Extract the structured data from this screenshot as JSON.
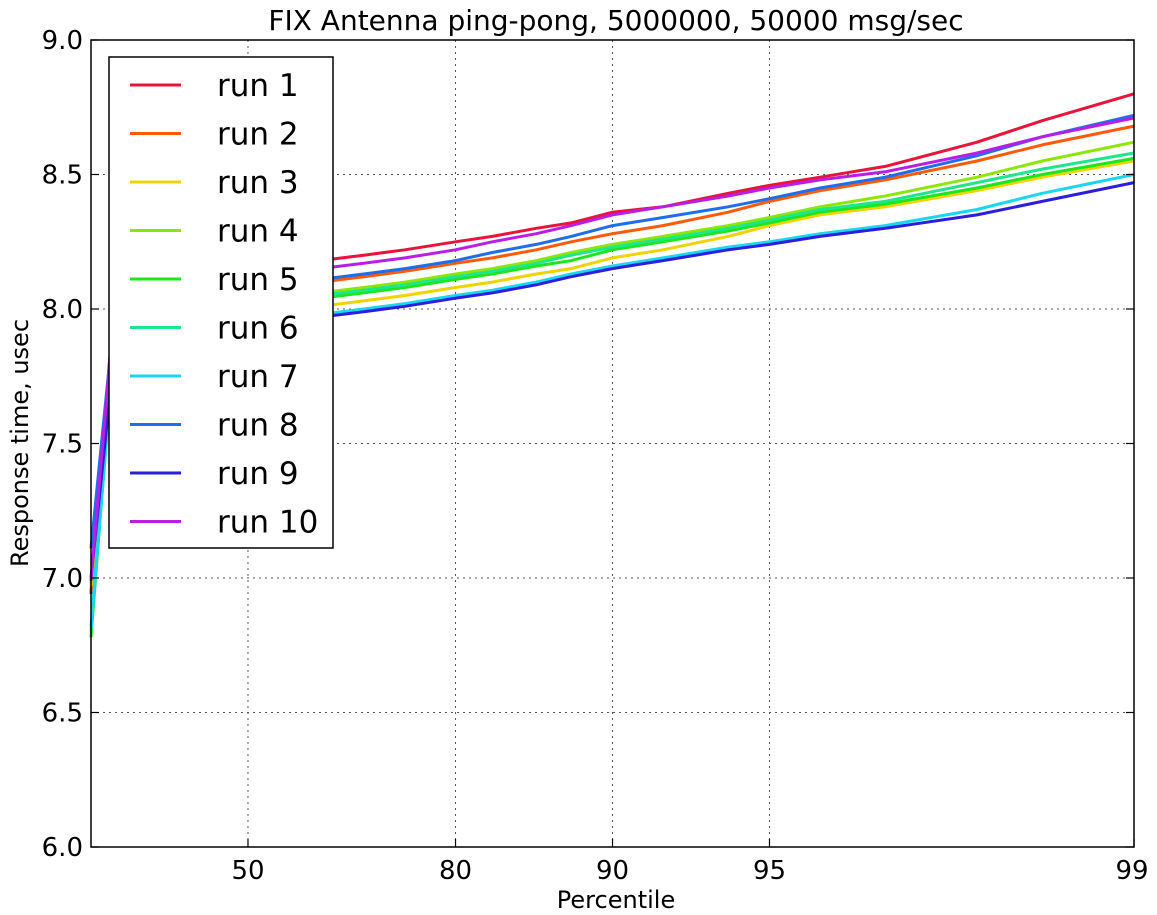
{
  "chart_data": {
    "type": "line",
    "title": "FIX Antenna ping-pong, 5000000, 50000 msg/sec",
    "xlabel": "Percentile",
    "ylabel": "Response time, usec",
    "x_scale": "percentile (reciprocal of 100 - p)",
    "xlim": [
      0,
      99
    ],
    "ylim": [
      6.0,
      9.0
    ],
    "yticks": [
      "6.0",
      "6.5",
      "7.0",
      "7.5",
      "8.0",
      "8.5",
      "9.0"
    ],
    "xticks": [
      {
        "value": 50,
        "label": "50"
      },
      {
        "value": 80,
        "label": "80"
      },
      {
        "value": 90,
        "label": "90"
      },
      {
        "value": 95,
        "label": "95"
      },
      {
        "value": 99,
        "label": "99"
      }
    ],
    "grid": true,
    "legend_position": "upper left",
    "x": [
      0,
      10,
      20,
      30,
      40,
      50,
      60,
      70,
      75,
      80,
      83,
      86,
      88,
      90,
      92,
      94,
      95,
      96,
      97,
      98,
      98.5,
      99
    ],
    "series": [
      {
        "name": "run 1",
        "color": "#e8143a",
        "values": [
          6.94,
          8.06,
          8.09,
          8.11,
          8.13,
          8.15,
          8.17,
          8.2,
          8.22,
          8.25,
          8.27,
          8.3,
          8.32,
          8.36,
          8.38,
          8.43,
          8.46,
          8.49,
          8.53,
          8.62,
          8.7,
          8.8
        ]
      },
      {
        "name": "run 2",
        "color": "#ff5a0a",
        "values": [
          6.95,
          8.0,
          8.02,
          8.04,
          8.06,
          8.07,
          8.09,
          8.12,
          8.14,
          8.17,
          8.19,
          8.22,
          8.25,
          8.28,
          8.31,
          8.36,
          8.4,
          8.44,
          8.48,
          8.55,
          8.61,
          8.68
        ]
      },
      {
        "name": "run 3",
        "color": "#f0d400",
        "values": [
          6.97,
          7.9,
          7.92,
          7.94,
          7.96,
          7.98,
          8.0,
          8.03,
          8.05,
          8.08,
          8.1,
          8.13,
          8.15,
          8.19,
          8.22,
          8.27,
          8.31,
          8.35,
          8.38,
          8.44,
          8.49,
          8.55
        ]
      },
      {
        "name": "run 4",
        "color": "#8ce60a",
        "values": [
          6.98,
          7.96,
          7.98,
          8.0,
          8.02,
          8.03,
          8.05,
          8.08,
          8.1,
          8.13,
          8.15,
          8.18,
          8.21,
          8.24,
          8.27,
          8.31,
          8.34,
          8.38,
          8.42,
          8.49,
          8.55,
          8.62
        ]
      },
      {
        "name": "run 5",
        "color": "#1ee61e",
        "values": [
          6.78,
          7.93,
          7.96,
          7.98,
          8.0,
          8.01,
          8.03,
          8.06,
          8.08,
          8.11,
          8.13,
          8.16,
          8.18,
          8.22,
          8.25,
          8.29,
          8.32,
          8.36,
          8.39,
          8.45,
          8.5,
          8.56
        ]
      },
      {
        "name": "run 6",
        "color": "#1ee68c",
        "values": [
          6.8,
          7.95,
          7.98,
          8.0,
          8.01,
          8.02,
          8.04,
          8.07,
          8.09,
          8.12,
          8.14,
          8.17,
          8.2,
          8.23,
          8.26,
          8.3,
          8.33,
          8.37,
          8.4,
          8.47,
          8.52,
          8.58
        ]
      },
      {
        "name": "run 7",
        "color": "#19d7f0",
        "values": [
          6.82,
          7.88,
          7.9,
          7.92,
          7.93,
          7.95,
          7.97,
          8.0,
          8.02,
          8.05,
          8.07,
          8.1,
          8.13,
          8.16,
          8.19,
          8.23,
          8.25,
          8.28,
          8.31,
          8.37,
          8.43,
          8.5
        ]
      },
      {
        "name": "run 8",
        "color": "#1e6eeb",
        "values": [
          7.11,
          8.0,
          8.03,
          8.05,
          8.07,
          8.08,
          8.1,
          8.13,
          8.15,
          8.18,
          8.21,
          8.24,
          8.27,
          8.31,
          8.34,
          8.38,
          8.41,
          8.45,
          8.49,
          8.57,
          8.64,
          8.72
        ]
      },
      {
        "name": "run 9",
        "color": "#2d1edc",
        "values": [
          7.0,
          7.86,
          7.88,
          7.9,
          7.92,
          7.94,
          7.96,
          7.99,
          8.01,
          8.04,
          8.06,
          8.09,
          8.12,
          8.15,
          8.18,
          8.22,
          8.24,
          8.27,
          8.3,
          8.35,
          8.4,
          8.47
        ]
      },
      {
        "name": "run 10",
        "color": "#b91ee6",
        "values": [
          6.99,
          8.03,
          8.06,
          8.08,
          8.1,
          8.12,
          8.14,
          8.17,
          8.19,
          8.22,
          8.25,
          8.28,
          8.31,
          8.35,
          8.38,
          8.42,
          8.45,
          8.48,
          8.51,
          8.58,
          8.64,
          8.71
        ]
      }
    ]
  }
}
